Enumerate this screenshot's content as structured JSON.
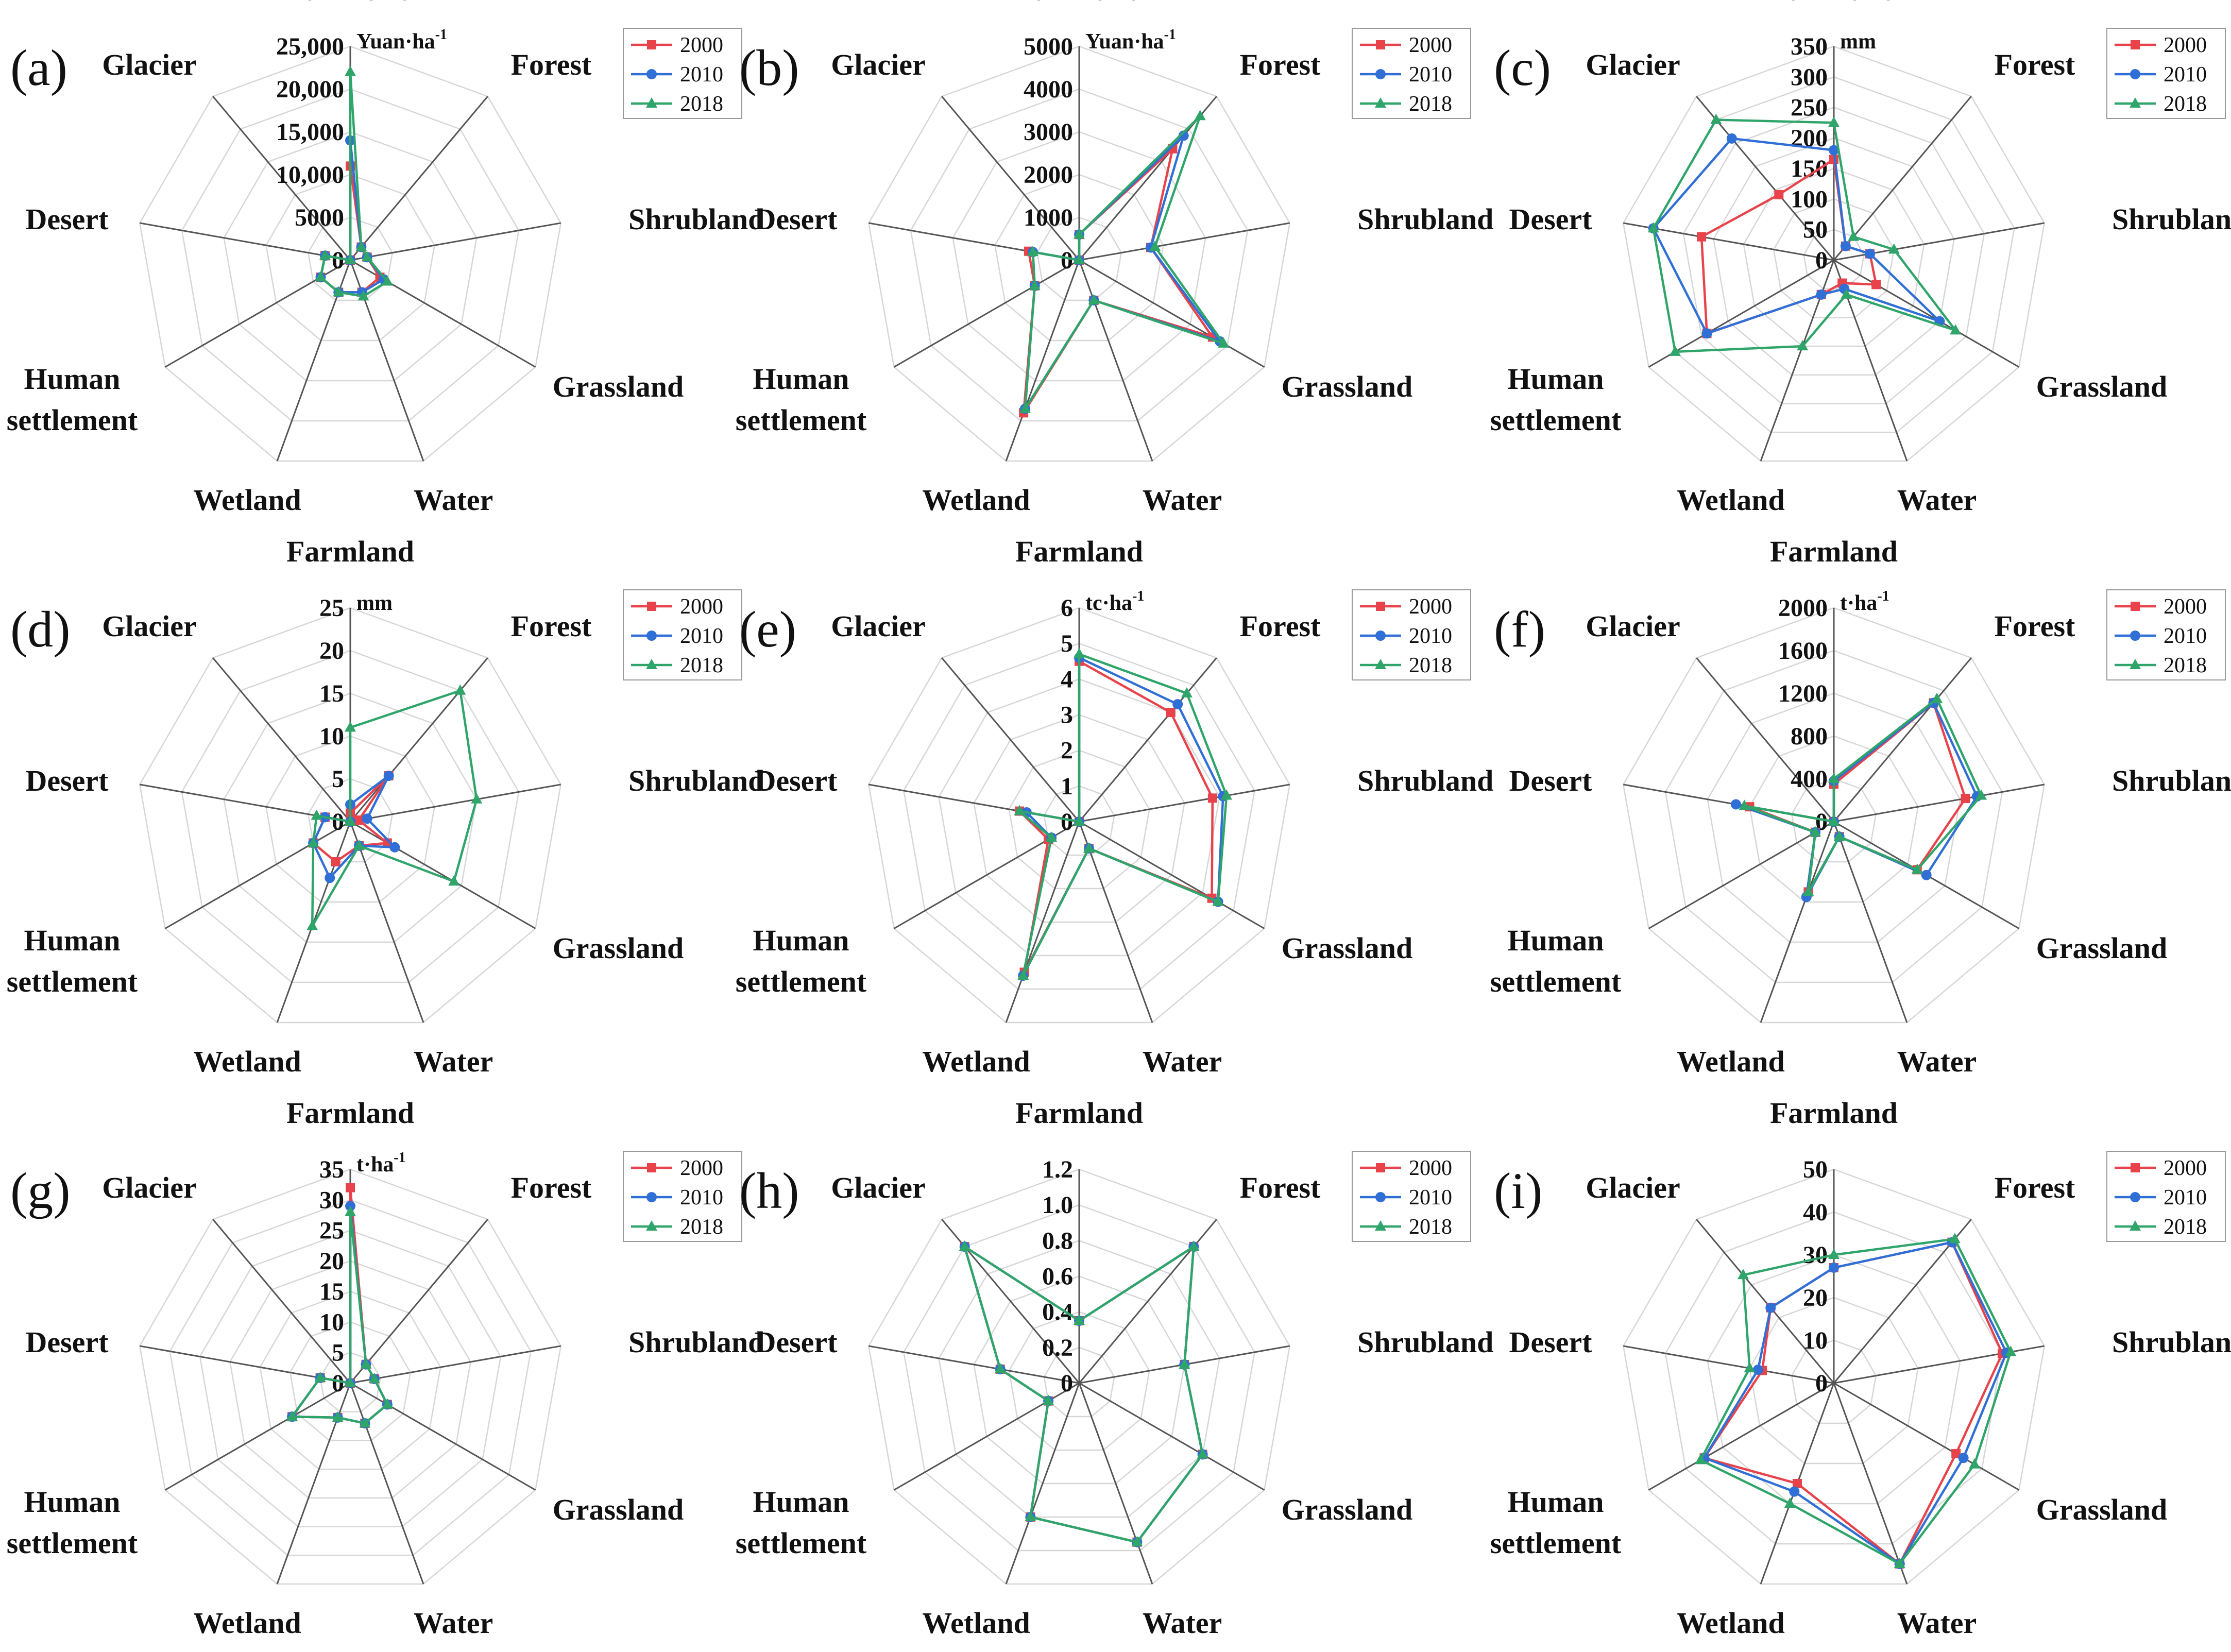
{
  "colors": {
    "2000": "#e8434a",
    "2010": "#2f6fd6",
    "2018": "#2fa56a",
    "grid": "#d6d6d6",
    "axis": "#555555"
  },
  "legend": [
    "2000",
    "2010",
    "2018"
  ],
  "chart_data": [
    {
      "panel": "(a)",
      "type": "radar",
      "unit": "Yuan·ha",
      "unit_sup": "-1",
      "categories": [
        "Farmland",
        "Forest",
        "Shrubland",
        "Grassland",
        "Water",
        "Wetland",
        "Human\nsettlement",
        "Desert",
        "Glacier"
      ],
      "ticks": [
        "0",
        "5000",
        "10,000",
        "15,000",
        "20,000",
        "25,000"
      ],
      "max": 25000,
      "series": [
        {
          "name": "2000",
          "values": [
            11000,
            2000,
            2000,
            4000,
            4000,
            4000,
            4000,
            3000,
            0
          ]
        },
        {
          "name": "2010",
          "values": [
            14000,
            2000,
            2000,
            4500,
            4000,
            4000,
            4000,
            3000,
            0
          ]
        },
        {
          "name": "2018",
          "values": [
            22000,
            2000,
            2000,
            5000,
            4500,
            4000,
            4000,
            3000,
            0
          ]
        }
      ]
    },
    {
      "panel": "(b)",
      "type": "radar",
      "unit": "Yuan·ha",
      "unit_sup": "-1",
      "categories": [
        "Farmland",
        "Forest",
        "Shrubland",
        "Grassland",
        "Water",
        "Wetland",
        "Human\nsettlement",
        "Desert",
        "Glacier"
      ],
      "ticks": [
        "0",
        "1000",
        "2000",
        "3000",
        "4000",
        "5000"
      ],
      "max": 5000,
      "series": [
        {
          "name": "2000",
          "values": [
            600,
            3400,
            1700,
            3600,
            1000,
            3800,
            1200,
            1200,
            0
          ]
        },
        {
          "name": "2010",
          "values": [
            600,
            3800,
            1700,
            3800,
            1000,
            3700,
            1200,
            1100,
            0
          ]
        },
        {
          "name": "2018",
          "values": [
            600,
            4400,
            1800,
            3900,
            1000,
            3700,
            1200,
            1100,
            0
          ]
        }
      ]
    },
    {
      "panel": "(c)",
      "type": "radar",
      "unit": "mm",
      "unit_sup": "",
      "categories": [
        "Farmland",
        "Forest",
        "Shrubland",
        "Grassland",
        "Water",
        "Wetland",
        "Human\nsettlement",
        "Desert",
        "Glacier"
      ],
      "ticks": [
        "0",
        "50",
        "100",
        "150",
        "200",
        "250",
        "300",
        "350"
      ],
      "max": 350,
      "series": [
        {
          "name": "2000",
          "values": [
            165,
            30,
            60,
            80,
            40,
            60,
            240,
            220,
            140
          ]
        },
        {
          "name": "2010",
          "values": [
            180,
            30,
            60,
            200,
            50,
            60,
            240,
            300,
            260
          ]
        },
        {
          "name": "2018",
          "values": [
            225,
            50,
            100,
            230,
            60,
            150,
            300,
            300,
            300
          ]
        }
      ]
    },
    {
      "panel": "(d)",
      "type": "radar",
      "unit": "mm",
      "unit_sup": "",
      "categories": [
        "Farmland",
        "Forest",
        "Shrubland",
        "Grassland",
        "Water",
        "Wetland",
        "Human\nsettlement",
        "Desert",
        "Glacier"
      ],
      "ticks": [
        "0",
        "5",
        "10",
        "15",
        "20",
        "25"
      ],
      "max": 25,
      "series": [
        {
          "name": "2000",
          "values": [
            1,
            7,
            1,
            5,
            3,
            5,
            5,
            3,
            0
          ]
        },
        {
          "name": "2010",
          "values": [
            2,
            7,
            2,
            6,
            3,
            7,
            5,
            3,
            0
          ]
        },
        {
          "name": "2018",
          "values": [
            11,
            20,
            15,
            14,
            3,
            13,
            5,
            4,
            0
          ]
        }
      ]
    },
    {
      "panel": "(e)",
      "type": "radar",
      "unit": "tc·ha",
      "unit_sup": "-1",
      "categories": [
        "Farmland",
        "Forest",
        "Shrubland",
        "Grassland",
        "Water",
        "Wetland",
        "Human\nsettlement",
        "Desert",
        "Glacier"
      ],
      "ticks": [
        "0",
        "1",
        "2",
        "3",
        "4",
        "5",
        "6"
      ],
      "max": 6,
      "series": [
        {
          "name": "2000",
          "values": [
            4.5,
            4.0,
            3.8,
            4.3,
            0.8,
            4.5,
            1.0,
            1.7,
            0
          ]
        },
        {
          "name": "2010",
          "values": [
            4.6,
            4.3,
            4.1,
            4.5,
            0.8,
            4.6,
            0.9,
            1.5,
            0
          ]
        },
        {
          "name": "2018",
          "values": [
            4.7,
            4.7,
            4.2,
            4.5,
            0.8,
            4.6,
            0.9,
            1.7,
            0
          ]
        }
      ]
    },
    {
      "panel": "(f)",
      "type": "radar",
      "unit": "t·ha",
      "unit_sup": "-1",
      "categories": [
        "Farmland",
        "Forest",
        "Shrubland",
        "Grassland",
        "Water",
        "Wetland",
        "Human\nsettlement",
        "Desert",
        "Glacier"
      ],
      "ticks": [
        "0",
        "400",
        "800",
        "1200",
        "1600",
        "2000"
      ],
      "max": 2000,
      "series": [
        {
          "name": "2000",
          "values": [
            350,
            1450,
            1250,
            900,
            150,
            700,
            200,
            800,
            0
          ]
        },
        {
          "name": "2010",
          "values": [
            380,
            1450,
            1360,
            1000,
            150,
            750,
            200,
            930,
            0
          ]
        },
        {
          "name": "2018",
          "values": [
            400,
            1500,
            1400,
            900,
            150,
            700,
            200,
            850,
            0
          ]
        }
      ]
    },
    {
      "panel": "(g)",
      "type": "radar",
      "unit": "t·ha",
      "unit_sup": "-1",
      "categories": [
        "Farmland",
        "Forest",
        "Shrubland",
        "Grassland",
        "Water",
        "Wetland",
        "Human\nsettlement",
        "Desert",
        "Glacier"
      ],
      "ticks": [
        "0",
        "5",
        "10",
        "15",
        "20",
        "25",
        "30",
        "35"
      ],
      "max": 35,
      "series": [
        {
          "name": "2000",
          "values": [
            32,
            4,
            4,
            7,
            7,
            6,
            11,
            5,
            0
          ]
        },
        {
          "name": "2010",
          "values": [
            29,
            4,
            4,
            7,
            7,
            6,
            11,
            5,
            0
          ]
        },
        {
          "name": "2018",
          "values": [
            28,
            4,
            4,
            7,
            7,
            6,
            11,
            5,
            0
          ]
        }
      ]
    },
    {
      "panel": "(h)",
      "type": "radar",
      "unit": "",
      "unit_sup": "",
      "categories": [
        "Farmland",
        "Forest",
        "Shrubland",
        "Grassland",
        "Water",
        "Wetland",
        "Human\nsettlement",
        "Desert",
        "Glacier"
      ],
      "ticks": [
        "0",
        "0.2",
        "0.4",
        "0.6",
        "0.8",
        "1.0",
        "1.2"
      ],
      "max": 1.2,
      "series": [
        {
          "name": "2000",
          "values": [
            0.35,
            1.0,
            0.6,
            0.8,
            0.95,
            0.8,
            0.2,
            0.45,
            1.0
          ]
        },
        {
          "name": "2010",
          "values": [
            0.35,
            1.0,
            0.6,
            0.8,
            0.95,
            0.8,
            0.2,
            0.45,
            1.0
          ]
        },
        {
          "name": "2018",
          "values": [
            0.35,
            1.0,
            0.6,
            0.8,
            0.95,
            0.8,
            0.2,
            0.45,
            1.0
          ]
        }
      ]
    },
    {
      "panel": "(i)",
      "type": "radar",
      "unit": "",
      "unit_sup": "",
      "categories": [
        "Farmland",
        "Forest",
        "Shrubland",
        "Grassland",
        "Water",
        "Wetland",
        "Human\nsettlement",
        "Desert",
        "Glacier"
      ],
      "ticks": [
        "0",
        "10",
        "20",
        "30",
        "40",
        "50"
      ],
      "max": 50,
      "series": [
        {
          "name": "2000",
          "values": [
            27,
            43,
            40,
            33,
            45,
            25,
            35,
            17,
            23
          ]
        },
        {
          "name": "2010",
          "values": [
            27,
            43,
            41,
            35,
            45,
            27,
            35,
            18,
            23
          ]
        },
        {
          "name": "2018",
          "values": [
            30,
            44,
            42,
            38,
            45,
            30,
            36,
            20,
            33
          ]
        }
      ]
    }
  ]
}
